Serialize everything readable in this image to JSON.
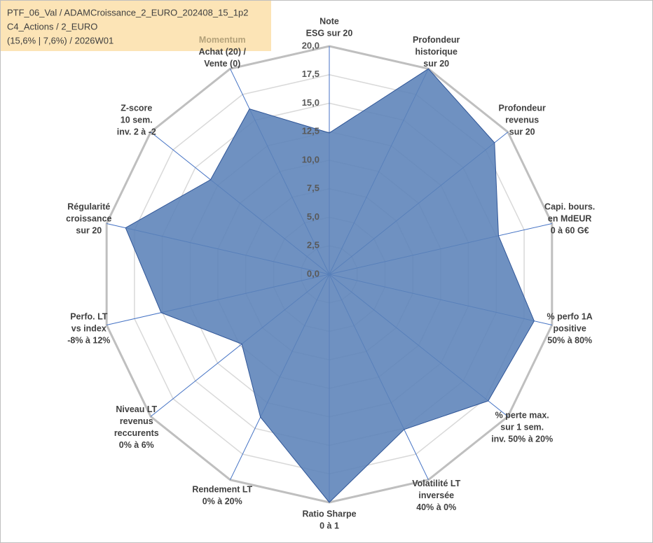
{
  "chart_data": {
    "type": "radar",
    "title": [
      "PTF_06_Val / ADAMCroissance_2_EURO_202408_15_1p2",
      "C4_Actions / 2_EURO",
      "(15,6% | 7,6%) / 2026W01"
    ],
    "categories": [
      [
        "Note",
        "ESG sur 20"
      ],
      [
        "Profondeur",
        "historique",
        "sur 20"
      ],
      [
        "Profondeur",
        "revenus",
        "sur 20"
      ],
      [
        "Capi. bours.",
        "en MdEUR",
        "0 à 60 G€"
      ],
      [
        "% perfo 1A",
        "positive",
        "50% à 80%"
      ],
      [
        "% perte max.",
        "sur 1 sem.",
        "inv. 50% à 20%"
      ],
      [
        "Volatilité LT",
        "inversée",
        "40% à 0%"
      ],
      [
        "Ratio Sharpe",
        "0 à 1"
      ],
      [
        "Rendement LT",
        "0% à 20%"
      ],
      [
        "Niveau LT",
        "revenus",
        "reccurents",
        "0% à 6%"
      ],
      [
        "Perfo. LT",
        "vs index",
        "-8% à 12%"
      ],
      [
        "Régularité",
        "croissance",
        "sur 20"
      ],
      [
        "Z-score",
        "10 sem.",
        "inv. 2 à -2"
      ],
      [
        "Momentum",
        "Achat (20) /",
        "Vente (0)"
      ]
    ],
    "values": [
      12.4,
      20,
      18.5,
      15.2,
      18.4,
      17.8,
      15.1,
      20,
      13.9,
      9.8,
      15.1,
      18.3,
      13.3,
      16.1
    ],
    "color": "#5b82b8",
    "ylim": [
      0,
      20
    ],
    "yticks": [
      {
        "value": 0,
        "label": "0,0"
      },
      {
        "value": 2.5,
        "label": "2,5"
      },
      {
        "value": 5,
        "label": "5,0"
      },
      {
        "value": 7.5,
        "label": "7,5"
      },
      {
        "value": 10,
        "label": "10,0"
      },
      {
        "value": 12.5,
        "label": "12,5"
      },
      {
        "value": 15,
        "label": "15,0"
      },
      {
        "value": 17.5,
        "label": "17,5"
      },
      {
        "value": 20,
        "label": "20,0"
      }
    ],
    "grid": true
  }
}
